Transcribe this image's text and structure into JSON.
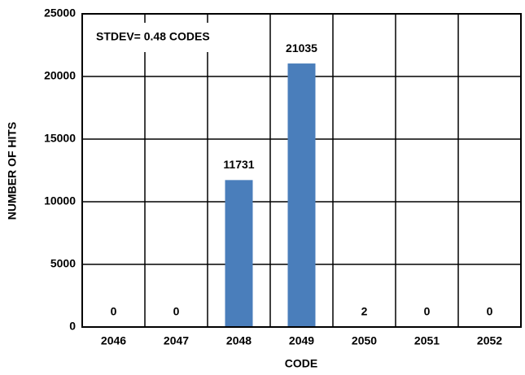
{
  "chart_data": {
    "type": "bar",
    "x_label": "CODE",
    "y_label": "NUMBER OF HITS",
    "annotation": "STDEV= 0.48 CODES",
    "categories": [
      "2046",
      "2047",
      "2048",
      "2049",
      "2050",
      "2051",
      "2052"
    ],
    "values": [
      0,
      0,
      11731,
      21035,
      2,
      0,
      0
    ],
    "color": "#4a7ebb",
    "ylim": [
      0,
      25000
    ],
    "yticks": [
      0,
      5000,
      10000,
      15000,
      20000,
      25000
    ],
    "grid": true
  }
}
